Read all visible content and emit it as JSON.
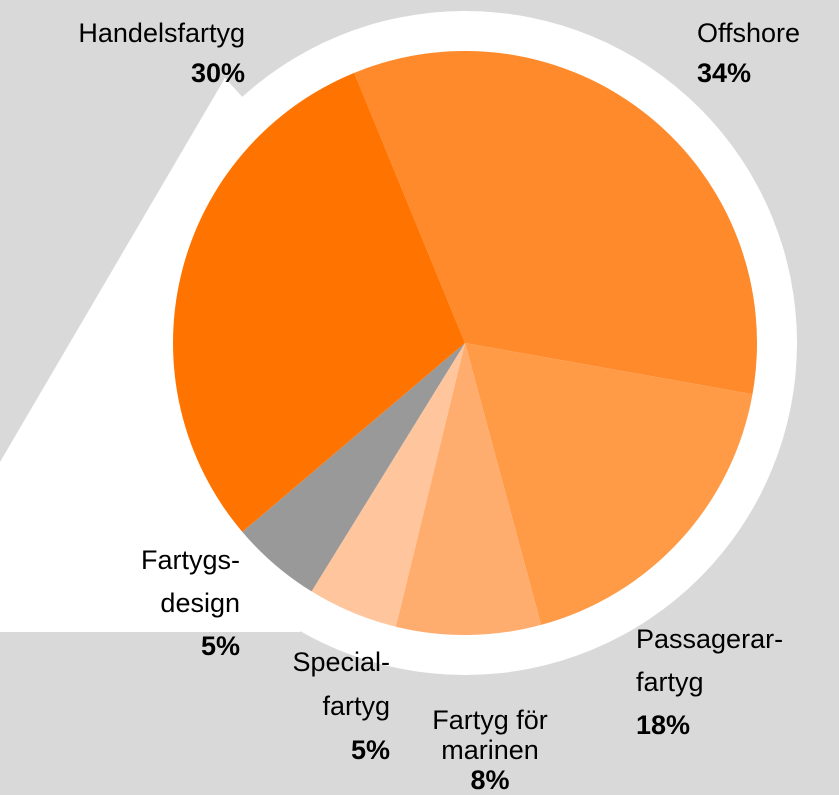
{
  "chart_data": {
    "type": "pie",
    "categories": [
      "Offshore",
      "Passagerar-\nfartyg",
      "Fartyg för\nmarinen",
      "Special-\nfartyg",
      "Fartygs-\ndesign",
      "Handelsfartyg"
    ],
    "values": [
      34,
      18,
      8,
      5,
      5,
      30
    ],
    "value_labels": [
      "34%",
      "18%",
      "8%",
      "5%",
      "5%",
      "30%"
    ],
    "colors": [
      "#ff8a2b",
      "#ff9b47",
      "#ffad6f",
      "#ffc59c",
      "#999999",
      "#ff7400"
    ]
  }
}
